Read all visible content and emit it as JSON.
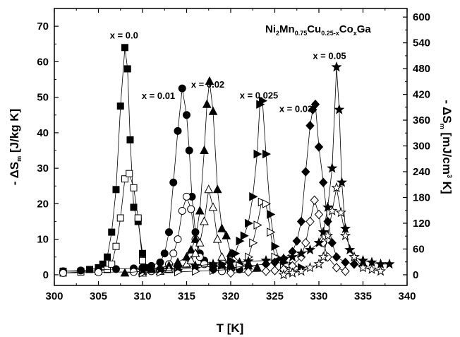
{
  "chart_data": {
    "type": "scatter",
    "title": "",
    "formula": {
      "a": "Ni",
      "a_sub": "2",
      "b": "Mn",
      "b_sub": "0.75",
      "c": "Cu",
      "c_sub": "0.25-x",
      "d": "Co",
      "d_sub": "x",
      "e": "Ga"
    },
    "xlabel": "T [K]",
    "ylabel_left": {
      "prefix": "- ΔS",
      "sub": "m",
      "suffix": " [J/kg K]"
    },
    "ylabel_right": {
      "prefix": "- ΔS",
      "sub": "m",
      "suffix": " [mJ/cm",
      "sup": "3",
      "suffix2": " K]"
    },
    "xlim": [
      300,
      340
    ],
    "ylim_left": [
      -3,
      75
    ],
    "ylim_right": [
      -24.8,
      620
    ],
    "x_ticks": [
      300,
      305,
      310,
      315,
      320,
      325,
      330,
      335,
      340
    ],
    "y_ticks_left": [
      0,
      10,
      20,
      30,
      40,
      50,
      60,
      70
    ],
    "y_ticks_right": [
      0,
      60,
      120,
      180,
      240,
      300,
      360,
      420,
      480,
      540,
      600
    ],
    "grid": false,
    "series": [
      {
        "name": "x = 0.0",
        "label_at": [
          307.9,
          66.5
        ],
        "marker": "square",
        "fill": "filled",
        "x": [
          301,
          303,
          304,
          305,
          305.5,
          306,
          306.5,
          307,
          307.5,
          308,
          308.3,
          308.6,
          309,
          309.5,
          310,
          310.5
        ],
        "y": [
          1,
          1,
          1.5,
          2,
          3,
          5,
          12,
          24,
          47.5,
          64,
          58,
          38,
          19,
          15,
          6,
          2
        ]
      },
      {
        "name": "",
        "marker": "square",
        "fill": "open",
        "x": [
          301,
          303,
          305,
          306,
          306.5,
          307,
          307.5,
          308,
          308.5,
          309,
          309.5,
          310,
          311
        ],
        "y": [
          0.5,
          0.8,
          1,
          1.5,
          3,
          8,
          16,
          27,
          28.5,
          24.5,
          16,
          4,
          1.5
        ]
      },
      {
        "name": "x = 0.01",
        "label_at": [
          311.8,
          49.5
        ],
        "marker": "circle",
        "fill": "filled",
        "x": [
          301,
          303,
          305,
          307,
          309,
          310,
          311,
          312,
          312.5,
          313,
          313.5,
          314,
          314.5,
          315,
          315.3,
          315.6,
          316,
          316.5,
          317,
          318,
          319,
          320,
          321
        ],
        "y": [
          1,
          1.2,
          1.4,
          1.6,
          1.8,
          2,
          2.5,
          3.5,
          6,
          12,
          26,
          40.5,
          52.5,
          45,
          35,
          22,
          12,
          6,
          4,
          2.5,
          2,
          2,
          1.5
        ]
      },
      {
        "name": "",
        "marker": "circle",
        "fill": "open",
        "x": [
          301,
          305,
          309,
          311,
          312,
          313,
          313.5,
          314,
          314.5,
          315,
          315.5,
          316,
          316.5,
          317,
          318,
          319
        ],
        "y": [
          0.5,
          0.7,
          0.8,
          1,
          1.5,
          3,
          6,
          10,
          18,
          22,
          18.5,
          10,
          5,
          3,
          1.5,
          1
        ]
      },
      {
        "name": "x = 0.02",
        "label_at": [
          317.4,
          52.7
        ],
        "marker": "triangle-up",
        "fill": "filled",
        "x": [
          308,
          310,
          311,
          312,
          313,
          314,
          315,
          315.5,
          316,
          316.5,
          317,
          317.3,
          317.6,
          318,
          318.5,
          319,
          319.5,
          320,
          321,
          322,
          323
        ],
        "y": [
          0.5,
          1,
          1.5,
          2,
          2.5,
          3.5,
          5,
          7,
          10,
          18,
          35,
          48,
          54.5,
          46,
          24,
          13,
          11,
          6,
          3.5,
          2.5,
          2
        ]
      },
      {
        "name": "",
        "marker": "triangle-up",
        "fill": "open",
        "x": [
          310,
          312,
          313,
          314,
          315,
          315.5,
          316,
          316.5,
          317,
          317.5,
          318,
          318.5,
          319,
          320
        ],
        "y": [
          0.5,
          1,
          1.5,
          2,
          3,
          4,
          6,
          9,
          15,
          24,
          19,
          10,
          5,
          2
        ]
      },
      {
        "name": "x = 0.025",
        "label_at": [
          323.2,
          49.6
        ],
        "marker": "triangle-right",
        "fill": "filled",
        "x": [
          312,
          314,
          316,
          318,
          319,
          320,
          320.5,
          321,
          321.5,
          322,
          322.5,
          323,
          323.3,
          323.6,
          324,
          324.5,
          325,
          325.5,
          326,
          327,
          328
        ],
        "y": [
          1,
          1.5,
          2,
          2.5,
          3,
          4,
          6,
          9.5,
          11,
          14.5,
          22,
          34,
          48,
          49,
          34,
          17,
          8,
          4.5,
          3.5,
          2.5,
          2
        ]
      },
      {
        "name": "",
        "marker": "triangle-right",
        "fill": "open",
        "x": [
          310,
          312,
          314,
          316,
          318,
          320,
          321,
          322,
          322.5,
          323,
          323.5,
          324,
          324.5,
          325,
          326,
          327
        ],
        "y": [
          0.5,
          0.7,
          0.8,
          1,
          1.2,
          1.5,
          2.5,
          5,
          9,
          14,
          20.5,
          20,
          12,
          5,
          2,
          1
        ]
      },
      {
        "name": "x = 0.03",
        "label_at": [
          327.4,
          45.8
        ],
        "marker": "diamond",
        "fill": "filled",
        "x": [
          318,
          320,
          322,
          324,
          325,
          326,
          327,
          327.5,
          328,
          328.5,
          329,
          329.3,
          329.6,
          330,
          330.5,
          331,
          331.5,
          332,
          333,
          334,
          335
        ],
        "y": [
          1.5,
          2,
          2.5,
          3,
          3.5,
          4.5,
          6.5,
          9.5,
          15,
          29,
          42,
          46.5,
          48,
          36,
          26,
          15,
          9,
          5,
          3.5,
          3,
          2.5
        ]
      },
      {
        "name": "",
        "marker": "diamond",
        "fill": "open",
        "x": [
          320,
          322,
          324,
          325,
          326,
          327,
          328,
          328.5,
          329,
          329.5,
          330,
          330.5,
          331,
          332,
          333
        ],
        "y": [
          0.5,
          0.8,
          1,
          1.2,
          1.5,
          2.5,
          5,
          9,
          15,
          21,
          17,
          9,
          5,
          2,
          1
        ]
      },
      {
        "name": "x = 0.05",
        "label_at": [
          331.2,
          60.8
        ],
        "marker": "star",
        "fill": "filled",
        "x": [
          310,
          312,
          314,
          316,
          318,
          320,
          322,
          324,
          326,
          327,
          328,
          329,
          330,
          330.5,
          331,
          331.5,
          332,
          332.3,
          332.6,
          333,
          333.5,
          334,
          335,
          336,
          337,
          338
        ],
        "y": [
          1.2,
          1.5,
          2,
          2.5,
          3,
          3.5,
          3.8,
          4,
          4.5,
          5,
          6,
          7,
          9,
          12,
          19,
          30,
          58.5,
          46.5,
          26,
          13,
          7,
          5,
          4,
          3.5,
          3,
          3
        ]
      },
      {
        "name": "",
        "marker": "star",
        "fill": "open",
        "x": [
          326,
          327,
          328,
          329,
          330,
          330.5,
          331,
          331.5,
          332,
          332.5,
          333,
          334,
          335,
          336,
          337
        ],
        "y": [
          0,
          0.5,
          1,
          2,
          3,
          5,
          11,
          18,
          24.5,
          17.5,
          11,
          5,
          2,
          1.5,
          1
        ]
      }
    ]
  }
}
